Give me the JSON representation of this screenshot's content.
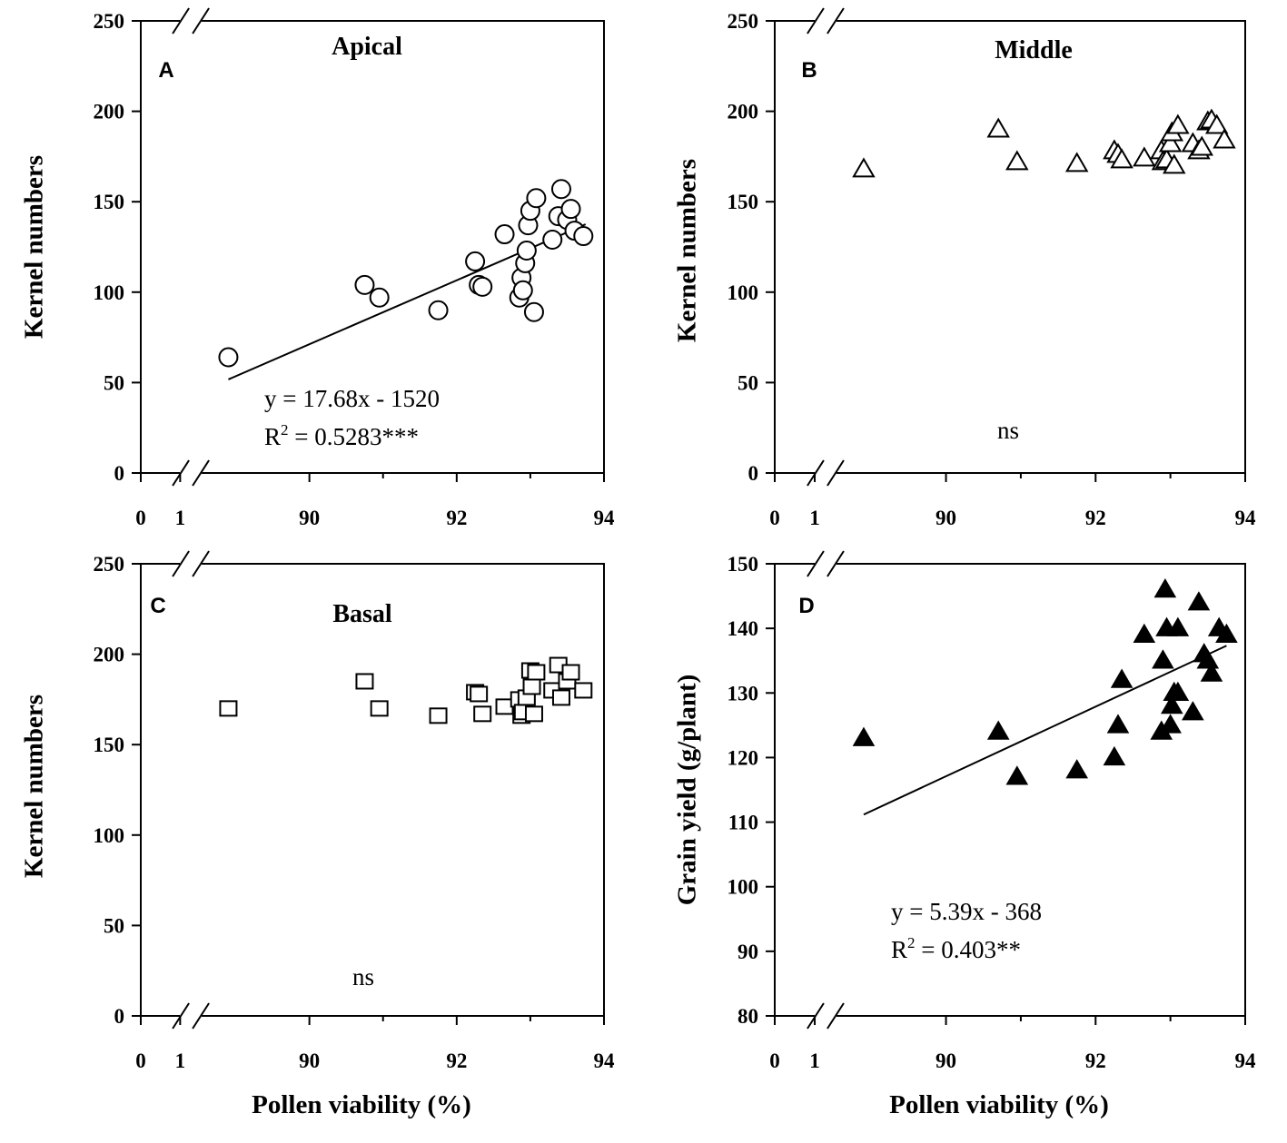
{
  "chart_data": [
    {
      "id": "A",
      "type": "scatter",
      "panel_letter": "A",
      "title": "Apical",
      "ylabel": "Kernel numbers",
      "xlabel": "",
      "ylim": [
        0,
        250
      ],
      "yticks": [
        "0",
        "50",
        "100",
        "150",
        "200",
        "250"
      ],
      "xticks": [
        "0",
        "1",
        "90",
        "92",
        "94"
      ],
      "xlim_break": [
        89,
        94
      ],
      "marker": "circle-open",
      "points": [
        [
          88.9,
          64
        ],
        [
          90.75,
          104
        ],
        [
          90.95,
          97
        ],
        [
          91.75,
          90
        ],
        [
          92.25,
          117
        ],
        [
          92.3,
          104
        ],
        [
          92.35,
          103
        ],
        [
          92.65,
          132
        ],
        [
          92.85,
          97
        ],
        [
          92.88,
          108
        ],
        [
          92.9,
          101
        ],
        [
          92.93,
          116
        ],
        [
          92.95,
          123
        ],
        [
          92.97,
          137
        ],
        [
          93.0,
          145
        ],
        [
          93.05,
          89
        ],
        [
          93.08,
          152
        ],
        [
          93.3,
          129
        ],
        [
          93.38,
          142
        ],
        [
          93.42,
          157
        ],
        [
          93.5,
          140
        ],
        [
          93.55,
          146
        ],
        [
          93.6,
          134
        ],
        [
          93.72,
          131
        ]
      ],
      "fit": {
        "slope": 17.68,
        "intercept": -1520,
        "x_range": [
          88.9,
          93.75
        ]
      },
      "annotations": [
        "y = 17.68x - 1520",
        "R2 = 0.5283***"
      ]
    },
    {
      "id": "B",
      "type": "scatter",
      "panel_letter": "B",
      "title": "Middle",
      "ylabel": "Kernel numbers",
      "xlabel": "",
      "ylim": [
        0,
        250
      ],
      "yticks": [
        "0",
        "50",
        "100",
        "150",
        "200",
        "250"
      ],
      "xticks": [
        "0",
        "1",
        "90",
        "92",
        "94"
      ],
      "xlim_break": [
        89,
        94
      ],
      "marker": "triangle-open",
      "points": [
        [
          88.9,
          168
        ],
        [
          90.7,
          190
        ],
        [
          90.95,
          172
        ],
        [
          91.75,
          171
        ],
        [
          92.25,
          178
        ],
        [
          92.3,
          176
        ],
        [
          92.35,
          173
        ],
        [
          92.65,
          174
        ],
        [
          92.88,
          178
        ],
        [
          92.9,
          172
        ],
        [
          92.95,
          173
        ],
        [
          93.0,
          182
        ],
        [
          93.02,
          188
        ],
        [
          93.05,
          170
        ],
        [
          93.1,
          192
        ],
        [
          93.3,
          182
        ],
        [
          93.38,
          178
        ],
        [
          93.42,
          180
        ],
        [
          93.5,
          194
        ],
        [
          93.55,
          195
        ],
        [
          93.62,
          192
        ],
        [
          93.72,
          184
        ]
      ],
      "annotations": [
        "ns"
      ]
    },
    {
      "id": "C",
      "type": "scatter",
      "panel_letter": "C",
      "title": "Basal",
      "ylabel": "Kernel numbers",
      "xlabel": "Pollen viability (%)",
      "ylim": [
        0,
        250
      ],
      "yticks": [
        "0",
        "50",
        "100",
        "150",
        "200",
        "250"
      ],
      "xticks": [
        "0",
        "1",
        "90",
        "92",
        "94"
      ],
      "xlim_break": [
        89,
        94
      ],
      "marker": "square-open",
      "points": [
        [
          88.9,
          170
        ],
        [
          90.75,
          185
        ],
        [
          90.95,
          170
        ],
        [
          91.75,
          166
        ],
        [
          92.25,
          179
        ],
        [
          92.3,
          178
        ],
        [
          92.35,
          167
        ],
        [
          92.65,
          171
        ],
        [
          92.85,
          175
        ],
        [
          92.88,
          166
        ],
        [
          92.9,
          168
        ],
        [
          92.95,
          176
        ],
        [
          93.0,
          191
        ],
        [
          93.02,
          182
        ],
        [
          93.05,
          167
        ],
        [
          93.08,
          190
        ],
        [
          93.3,
          180
        ],
        [
          93.38,
          194
        ],
        [
          93.42,
          176
        ],
        [
          93.5,
          185
        ],
        [
          93.55,
          190
        ],
        [
          93.72,
          180
        ]
      ],
      "annotations": [
        "ns"
      ]
    },
    {
      "id": "D",
      "type": "scatter",
      "panel_letter": "D",
      "title": "",
      "ylabel": "Grain yield (g/plant)",
      "xlabel": "Pollen viability (%)",
      "ylim": [
        80,
        150
      ],
      "yticks": [
        "80",
        "90",
        "100",
        "110",
        "120",
        "130",
        "140",
        "150"
      ],
      "xticks": [
        "0",
        "1",
        "90",
        "92",
        "94"
      ],
      "xlim_break": [
        89,
        94
      ],
      "marker": "triangle-filled",
      "points": [
        [
          88.9,
          123
        ],
        [
          90.7,
          124
        ],
        [
          90.95,
          117
        ],
        [
          91.75,
          118
        ],
        [
          92.25,
          120
        ],
        [
          92.3,
          125
        ],
        [
          92.35,
          132
        ],
        [
          92.65,
          139
        ],
        [
          92.88,
          124
        ],
        [
          92.9,
          135
        ],
        [
          92.93,
          146
        ],
        [
          92.95,
          140
        ],
        [
          93.0,
          125
        ],
        [
          93.02,
          128
        ],
        [
          93.05,
          130
        ],
        [
          93.1,
          140
        ],
        [
          93.1,
          130
        ],
        [
          93.3,
          127
        ],
        [
          93.38,
          144
        ],
        [
          93.45,
          136
        ],
        [
          93.5,
          135
        ],
        [
          93.55,
          133
        ],
        [
          93.65,
          140
        ],
        [
          93.75,
          139
        ]
      ],
      "fit": {
        "slope": 5.39,
        "intercept": -368,
        "x_range": [
          88.9,
          93.75
        ]
      },
      "annotations": [
        "y = 5.39x - 368",
        "R2 = 0.403**"
      ]
    }
  ]
}
